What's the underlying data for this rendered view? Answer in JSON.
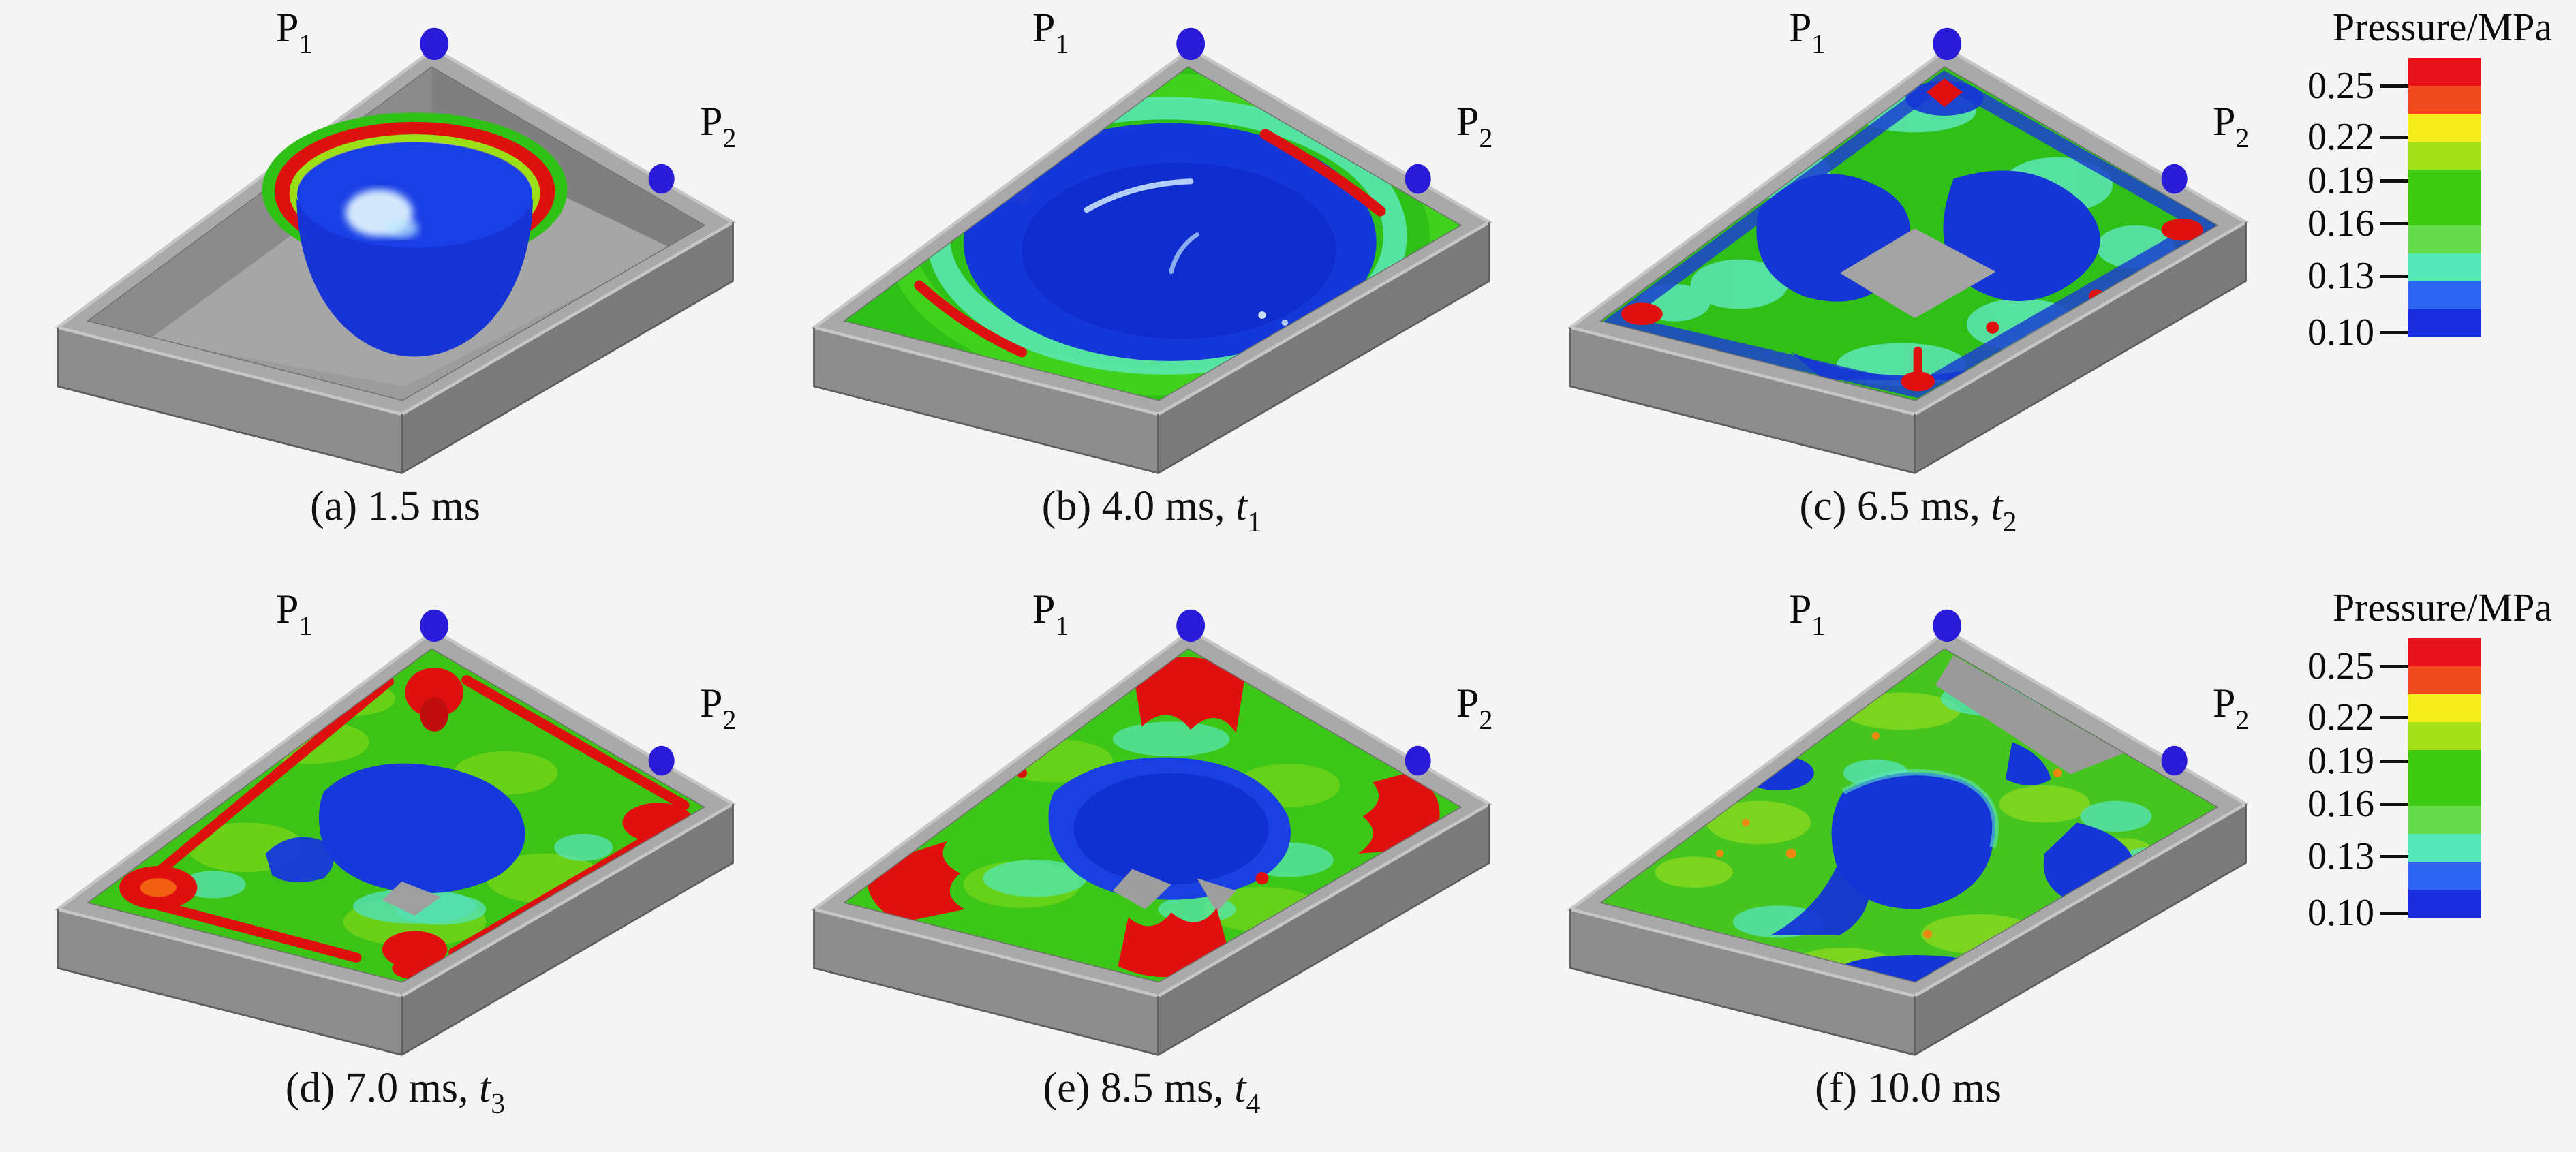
{
  "figure": {
    "background": "#f4f4f4",
    "probes": {
      "p1": {
        "base": "P",
        "sub": "1"
      },
      "p2": {
        "base": "P",
        "sub": "2"
      }
    },
    "panels": [
      {
        "label": "a",
        "caption": "(a) 1.5 ms",
        "t": "",
        "t_sub": ""
      },
      {
        "label": "b",
        "caption": "(b) 4.0 ms, ",
        "t": "t",
        "t_sub": "1"
      },
      {
        "label": "c",
        "caption": "(c) 6.5 ms, ",
        "t": "t",
        "t_sub": "2"
      },
      {
        "label": "d",
        "caption": "(d) 7.0 ms, ",
        "t": "t",
        "t_sub": "3"
      },
      {
        "label": "e",
        "caption": "(e) 8.5 ms, ",
        "t": "t",
        "t_sub": "4"
      },
      {
        "label": "f",
        "caption": "(f) 10.0 ms",
        "t": "",
        "t_sub": ""
      }
    ],
    "colorbar": {
      "title": "Pressure/MPa",
      "ticks": [
        "0.25",
        "0.22",
        "0.19",
        "0.16",
        "0.13",
        "0.10"
      ],
      "colors": [
        "#e8121b",
        "#f04b1e",
        "#f6ee1e",
        "#a6e01b",
        "#3ecb12",
        "#3ecb12",
        "#64dc4b",
        "#55e8b8",
        "#2d64f0",
        "#192dde"
      ],
      "probe_dot_color": "#2a1bd9",
      "red": "#de1010",
      "green": "#35c81c",
      "cyan": "#5ae6b2",
      "blue": "#1c3fd9"
    }
  }
}
